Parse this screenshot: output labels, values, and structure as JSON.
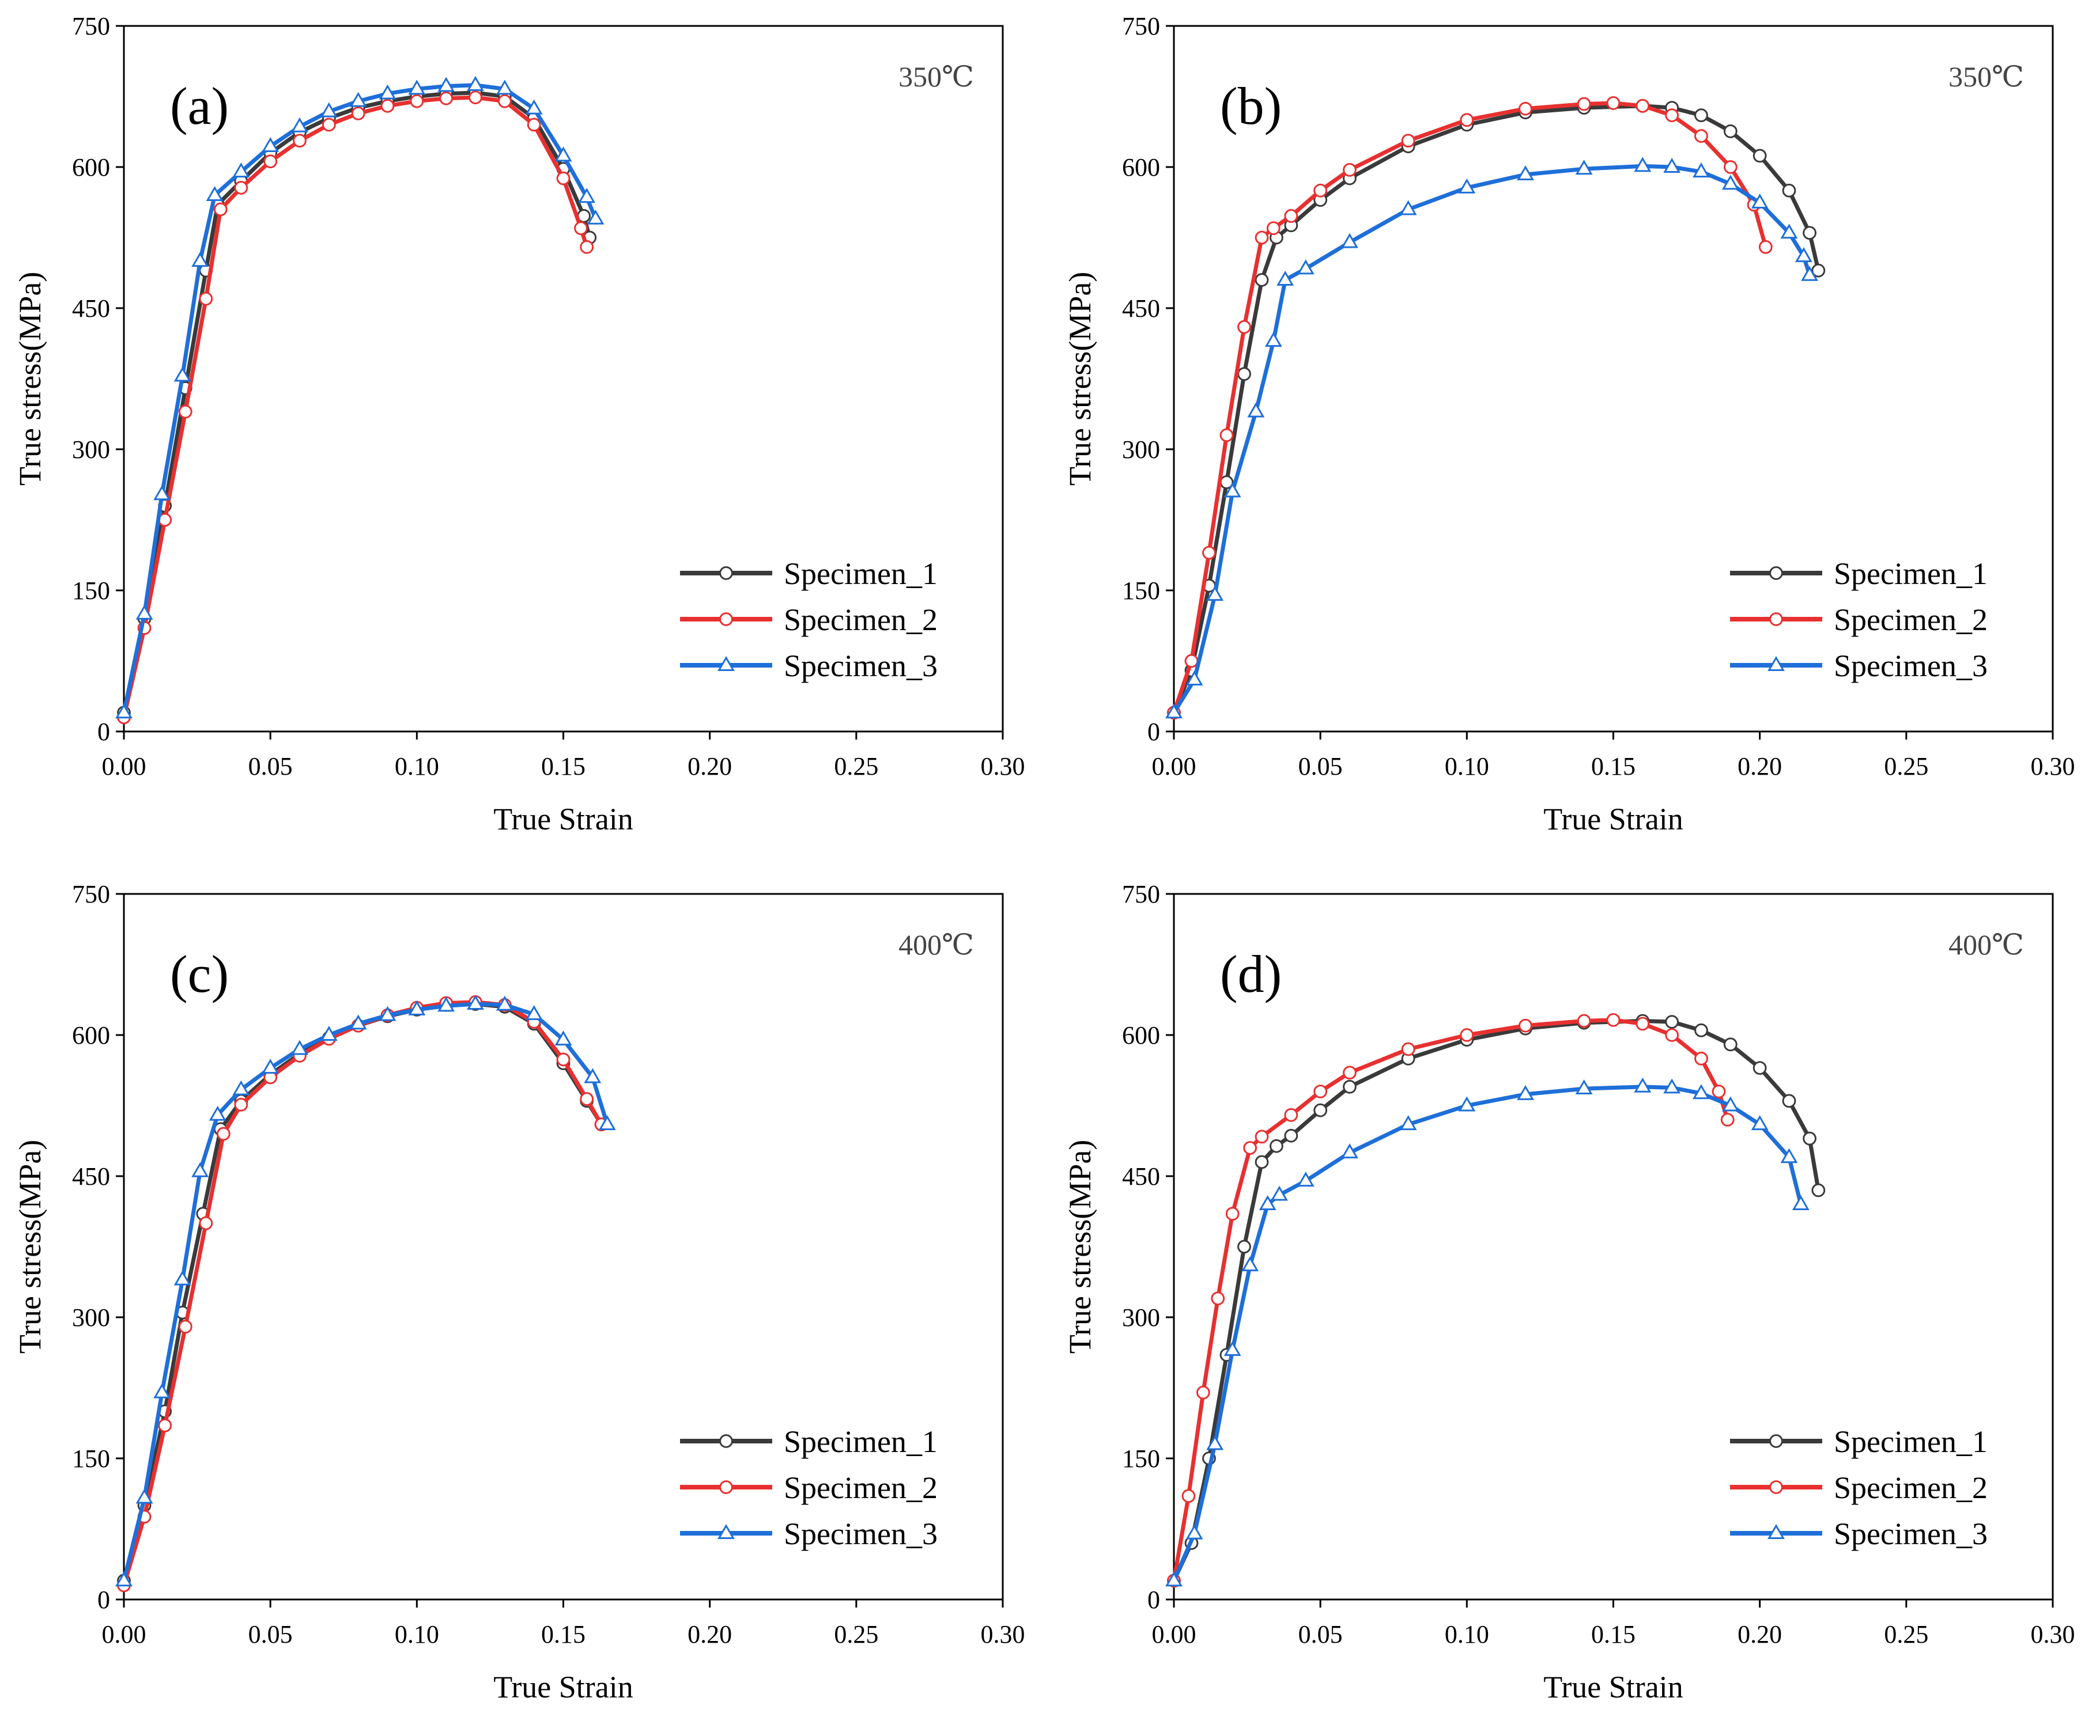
{
  "chart_data": [
    {
      "type": "line",
      "panel_label": "(a)",
      "temperature": "350℃",
      "xlabel": "True Strain",
      "ylabel": "True stress(MPa)",
      "xlim": [
        0,
        0.3
      ],
      "ylim": [
        0,
        750
      ],
      "x_ticks": [
        "0.00",
        "0.05",
        "0.10",
        "0.15",
        "0.20",
        "0.25",
        "0.30"
      ],
      "y_ticks": [
        "0",
        "150",
        "300",
        "450",
        "600",
        "750"
      ],
      "legend_position": "lower-right",
      "series": [
        {
          "name": "Specimen_1",
          "color": "#3a3a3a",
          "marker": "circle",
          "x": [
            0.0,
            0.007,
            0.014,
            0.021,
            0.028,
            0.032,
            0.04,
            0.05,
            0.06,
            0.07,
            0.08,
            0.09,
            0.1,
            0.11,
            0.12,
            0.13,
            0.14,
            0.15,
            0.157,
            0.159
          ],
          "y": [
            20,
            120,
            240,
            365,
            490,
            560,
            585,
            615,
            637,
            652,
            663,
            670,
            675,
            678,
            679,
            675,
            652,
            598,
            548,
            525
          ]
        },
        {
          "name": "Specimen_2",
          "color": "#e83030",
          "marker": "circle",
          "x": [
            0.0,
            0.007,
            0.014,
            0.021,
            0.028,
            0.033,
            0.04,
            0.05,
            0.06,
            0.07,
            0.08,
            0.09,
            0.1,
            0.11,
            0.12,
            0.13,
            0.14,
            0.15,
            0.156,
            0.158
          ],
          "y": [
            15,
            110,
            225,
            340,
            460,
            555,
            578,
            606,
            628,
            645,
            657,
            665,
            670,
            673,
            674,
            670,
            645,
            588,
            535,
            515
          ]
        },
        {
          "name": "Specimen_3",
          "color": "#1e6fd9",
          "marker": "triangle",
          "x": [
            0.0,
            0.007,
            0.013,
            0.02,
            0.026,
            0.031,
            0.04,
            0.05,
            0.06,
            0.07,
            0.08,
            0.09,
            0.1,
            0.11,
            0.12,
            0.13,
            0.14,
            0.15,
            0.158,
            0.161
          ],
          "y": [
            20,
            125,
            252,
            378,
            500,
            570,
            595,
            622,
            643,
            659,
            670,
            678,
            683,
            686,
            687,
            683,
            662,
            612,
            568,
            545
          ]
        }
      ]
    },
    {
      "type": "line",
      "panel_label": "(b)",
      "temperature": "350℃",
      "xlabel": "True Strain",
      "ylabel": "True stress(MPa)",
      "xlim": [
        0,
        0.3
      ],
      "ylim": [
        0,
        750
      ],
      "x_ticks": [
        "0.00",
        "0.05",
        "0.10",
        "0.15",
        "0.20",
        "0.25",
        "0.30"
      ],
      "y_ticks": [
        "0",
        "150",
        "300",
        "450",
        "600",
        "750"
      ],
      "legend_position": "lower-right",
      "series": [
        {
          "name": "Specimen_1",
          "color": "#3a3a3a",
          "marker": "circle",
          "x": [
            0.0,
            0.006,
            0.012,
            0.018,
            0.024,
            0.03,
            0.035,
            0.04,
            0.05,
            0.06,
            0.08,
            0.1,
            0.12,
            0.14,
            0.16,
            0.17,
            0.18,
            0.19,
            0.2,
            0.21,
            0.217,
            0.22
          ],
          "y": [
            20,
            65,
            155,
            265,
            380,
            480,
            525,
            538,
            565,
            588,
            622,
            645,
            658,
            663,
            665,
            663,
            655,
            638,
            612,
            575,
            530,
            490
          ]
        },
        {
          "name": "Specimen_2",
          "color": "#e83030",
          "marker": "circle",
          "x": [
            0.0,
            0.006,
            0.012,
            0.018,
            0.024,
            0.03,
            0.034,
            0.04,
            0.05,
            0.06,
            0.08,
            0.1,
            0.12,
            0.14,
            0.15,
            0.16,
            0.17,
            0.18,
            0.19,
            0.198,
            0.202
          ],
          "y": [
            20,
            75,
            190,
            315,
            430,
            525,
            535,
            548,
            575,
            597,
            628,
            650,
            662,
            667,
            668,
            665,
            655,
            633,
            600,
            560,
            515
          ]
        },
        {
          "name": "Specimen_3",
          "color": "#1e6fd9",
          "marker": "triangle",
          "x": [
            0.0,
            0.007,
            0.014,
            0.02,
            0.028,
            0.034,
            0.038,
            0.045,
            0.06,
            0.08,
            0.1,
            0.12,
            0.14,
            0.16,
            0.17,
            0.18,
            0.19,
            0.2,
            0.21,
            0.215,
            0.217
          ],
          "y": [
            20,
            55,
            145,
            255,
            340,
            415,
            480,
            492,
            520,
            555,
            578,
            592,
            598,
            601,
            600,
            595,
            582,
            562,
            530,
            505,
            485
          ]
        }
      ]
    },
    {
      "type": "line",
      "panel_label": "(c)",
      "temperature": "400℃",
      "xlabel": "True Strain",
      "ylabel": "True stress(MPa)",
      "xlim": [
        0,
        0.3
      ],
      "ylim": [
        0,
        750
      ],
      "x_ticks": [
        "0.00",
        "0.05",
        "0.10",
        "0.15",
        "0.20",
        "0.25",
        "0.30"
      ],
      "y_ticks": [
        "0",
        "150",
        "300",
        "450",
        "600",
        "750"
      ],
      "legend_position": "lower-right",
      "series": [
        {
          "name": "Specimen_1",
          "color": "#3a3a3a",
          "marker": "circle",
          "x": [
            0.0,
            0.007,
            0.014,
            0.02,
            0.027,
            0.033,
            0.04,
            0.05,
            0.06,
            0.07,
            0.08,
            0.09,
            0.1,
            0.11,
            0.12,
            0.13,
            0.14,
            0.15,
            0.158,
            0.163
          ],
          "y": [
            20,
            100,
            200,
            305,
            410,
            500,
            530,
            558,
            580,
            597,
            610,
            620,
            627,
            632,
            633,
            630,
            612,
            570,
            530,
            505
          ]
        },
        {
          "name": "Specimen_2",
          "color": "#e83030",
          "marker": "circle",
          "x": [
            0.0,
            0.007,
            0.014,
            0.021,
            0.028,
            0.034,
            0.04,
            0.05,
            0.06,
            0.07,
            0.08,
            0.09,
            0.1,
            0.11,
            0.12,
            0.13,
            0.14,
            0.15,
            0.158,
            0.163
          ],
          "y": [
            15,
            88,
            185,
            290,
            400,
            495,
            526,
            555,
            578,
            596,
            610,
            621,
            629,
            634,
            635,
            632,
            614,
            574,
            532,
            505
          ]
        },
        {
          "name": "Specimen_3",
          "color": "#1e6fd9",
          "marker": "triangle",
          "x": [
            0.0,
            0.007,
            0.013,
            0.02,
            0.026,
            0.032,
            0.04,
            0.05,
            0.06,
            0.07,
            0.08,
            0.09,
            0.1,
            0.11,
            0.12,
            0.13,
            0.14,
            0.15,
            0.16,
            0.165
          ],
          "y": [
            20,
            108,
            220,
            340,
            455,
            515,
            542,
            565,
            585,
            600,
            612,
            621,
            627,
            631,
            633,
            632,
            622,
            595,
            555,
            505
          ]
        }
      ]
    },
    {
      "type": "line",
      "panel_label": "(d)",
      "temperature": "400℃",
      "xlabel": "True Strain",
      "ylabel": "True stress(MPa)",
      "xlim": [
        0,
        0.3
      ],
      "ylim": [
        0,
        750
      ],
      "x_ticks": [
        "0.00",
        "0.05",
        "0.10",
        "0.15",
        "0.20",
        "0.25",
        "0.30"
      ],
      "y_ticks": [
        "0",
        "150",
        "300",
        "450",
        "600",
        "750"
      ],
      "legend_position": "lower-right",
      "series": [
        {
          "name": "Specimen_1",
          "color": "#3a3a3a",
          "marker": "circle",
          "x": [
            0.0,
            0.006,
            0.012,
            0.018,
            0.024,
            0.03,
            0.035,
            0.04,
            0.05,
            0.06,
            0.08,
            0.1,
            0.12,
            0.14,
            0.16,
            0.17,
            0.18,
            0.19,
            0.2,
            0.21,
            0.217,
            0.22
          ],
          "y": [
            20,
            60,
            150,
            260,
            375,
            465,
            482,
            493,
            520,
            545,
            575,
            595,
            607,
            613,
            615,
            614,
            605,
            590,
            565,
            530,
            490,
            435
          ]
        },
        {
          "name": "Specimen_2",
          "color": "#e83030",
          "marker": "circle",
          "x": [
            0.0,
            0.005,
            0.01,
            0.015,
            0.02,
            0.026,
            0.03,
            0.04,
            0.05,
            0.06,
            0.08,
            0.1,
            0.12,
            0.14,
            0.15,
            0.16,
            0.17,
            0.18,
            0.186,
            0.189
          ],
          "y": [
            20,
            110,
            220,
            320,
            410,
            480,
            492,
            515,
            540,
            560,
            585,
            600,
            610,
            615,
            616,
            612,
            600,
            575,
            540,
            510
          ]
        },
        {
          "name": "Specimen_3",
          "color": "#1e6fd9",
          "marker": "triangle",
          "x": [
            0.0,
            0.007,
            0.014,
            0.02,
            0.026,
            0.032,
            0.036,
            0.045,
            0.06,
            0.08,
            0.1,
            0.12,
            0.14,
            0.16,
            0.17,
            0.18,
            0.19,
            0.2,
            0.21,
            0.214
          ],
          "y": [
            20,
            70,
            165,
            265,
            355,
            420,
            430,
            445,
            475,
            505,
            525,
            537,
            543,
            545,
            544,
            538,
            525,
            505,
            470,
            420
          ]
        }
      ]
    }
  ]
}
